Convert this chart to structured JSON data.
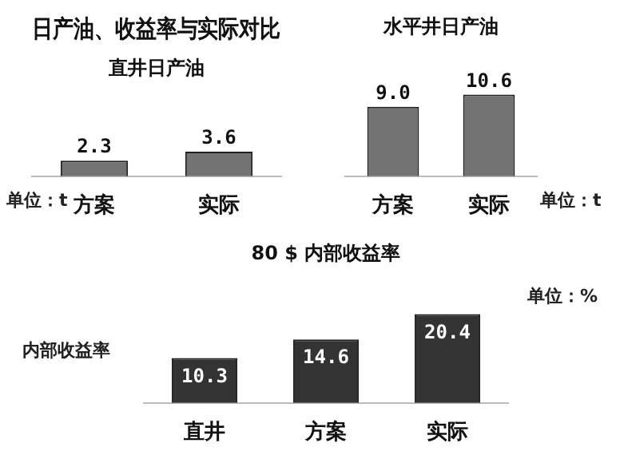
{
  "chart_data": [
    {
      "type": "bar",
      "title": "日产油、收益率与实际对比",
      "subtitle": "直井日产油",
      "categories": [
        "方案",
        "实际"
      ],
      "values": [
        2.3,
        3.6
      ],
      "value_labels": [
        "2.3",
        "3.6"
      ],
      "color": "#737373",
      "annotations": [
        "单位：t"
      ]
    },
    {
      "type": "bar",
      "title": "水平井日产油",
      "categories": [
        "方案",
        "实际"
      ],
      "values": [
        9.0,
        10.6
      ],
      "value_labels": [
        "9.0",
        "10.6"
      ],
      "color": "#737373",
      "annotations": [
        "单位：t"
      ]
    },
    {
      "type": "bar",
      "title": "80 $ 内部收益率",
      "ylabel": "内部收益率",
      "categories": [
        "直井",
        "方案",
        "实际"
      ],
      "values": [
        10.3,
        14.6,
        20.4
      ],
      "value_labels": [
        "10.3",
        "14.6",
        "20.4"
      ],
      "color": "#333333",
      "annotations": [
        "单位：%"
      ]
    }
  ]
}
